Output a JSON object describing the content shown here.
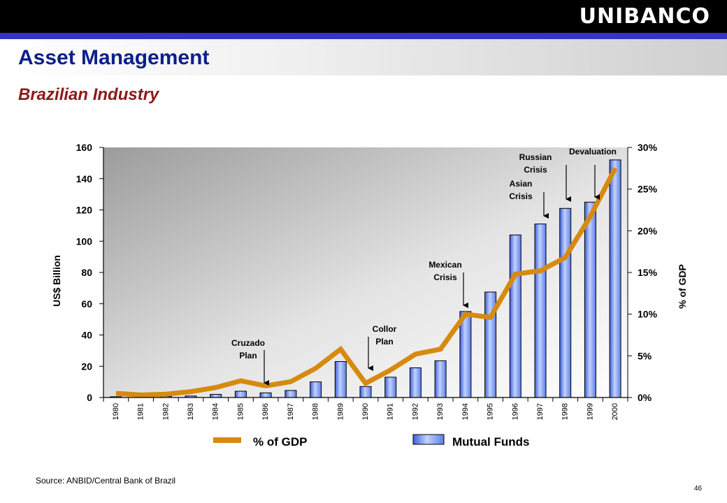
{
  "header": {
    "logo": "UNIBANCO",
    "title": "Asset Management",
    "subtitle": "Brazilian Industry"
  },
  "footer": {
    "source": "Source: ANBID/Central Bank of Brazil",
    "page_number": "46"
  },
  "colors": {
    "bar_fill": "#6f8ff0",
    "bar_fill_light": "#c3d2ff",
    "line": "#d68a10",
    "title_blue": "#0b1f8c",
    "subtitle_red": "#8b1a1a",
    "accent_blue": "#3434c8"
  },
  "chart_data": {
    "type": "bar",
    "categories": [
      "1980",
      "1981",
      "1982",
      "1983",
      "1984",
      "1985",
      "1986",
      "1987",
      "1988",
      "1989",
      "1990",
      "1991",
      "1992",
      "1993",
      "1994",
      "1995",
      "1996",
      "1997",
      "1998",
      "1999",
      "2000"
    ],
    "ylabel": "US$ Billion",
    "y2label": "% of GDP",
    "ylim": [
      0,
      160
    ],
    "y2lim": [
      0,
      30
    ],
    "yticks": [
      "0",
      "20",
      "40",
      "60",
      "80",
      "100",
      "120",
      "140",
      "160"
    ],
    "y2ticks": [
      "0%",
      "5%",
      "10%",
      "15%",
      "20%",
      "25%",
      "30%"
    ],
    "series": [
      {
        "name": "Mutual Funds",
        "type": "bar",
        "axis": "left",
        "values": [
          0.5,
          0.5,
          0.7,
          1.0,
          2.0,
          4.0,
          3.0,
          4.5,
          10,
          23,
          7,
          13,
          19,
          23.5,
          55,
          67.5,
          104,
          111,
          121,
          125,
          152
        ]
      },
      {
        "name": "% of GDP",
        "type": "line",
        "axis": "right",
        "values": [
          0.5,
          0.3,
          0.4,
          0.7,
          1.2,
          2.0,
          1.4,
          1.9,
          3.5,
          5.8,
          1.7,
          3.3,
          5.2,
          5.8,
          10.0,
          9.6,
          14.8,
          15.2,
          16.8,
          21.7,
          27.5
        ]
      }
    ],
    "annotations": [
      {
        "lines": [
          "Cruzado",
          "Plan"
        ],
        "year": "1986"
      },
      {
        "lines": [
          "Collor",
          "Plan"
        ],
        "year": "1990"
      },
      {
        "lines": [
          "Mexican",
          "Crisis"
        ],
        "year": "1994"
      },
      {
        "lines": [
          "Asian",
          "Crisis"
        ],
        "year": "1997"
      },
      {
        "lines": [
          "Russian",
          "Crisis"
        ],
        "year": "1998"
      },
      {
        "lines": [
          "Devaluation"
        ],
        "year": "1999"
      }
    ],
    "legend": {
      "position": "bottom",
      "line_label": "% of GDP",
      "bar_label": "Mutual Funds"
    },
    "grid": false
  }
}
